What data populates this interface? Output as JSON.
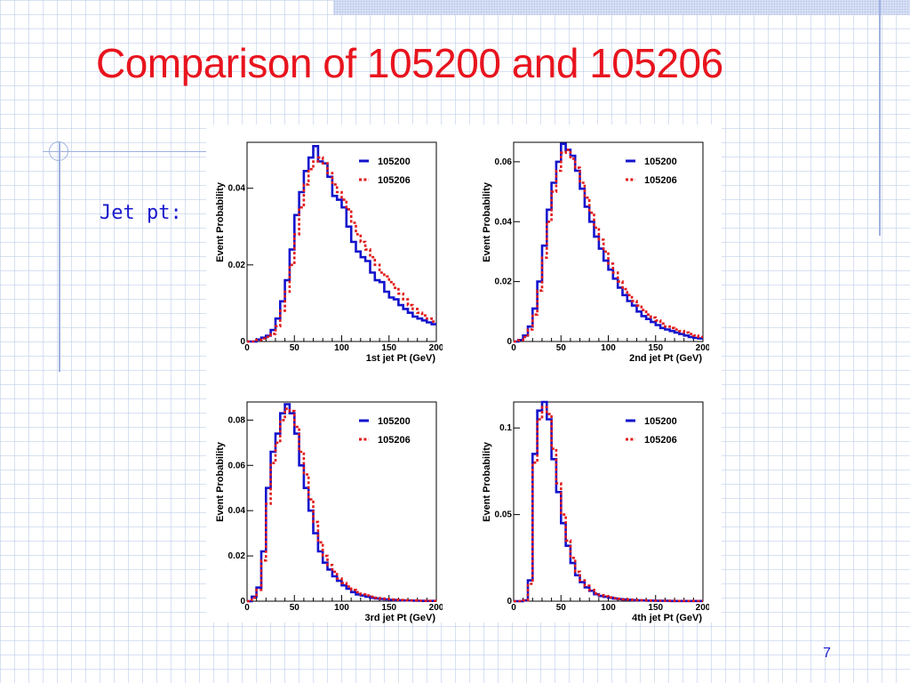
{
  "slide": {
    "title": "Comparison of 105200 and 105206",
    "bullet": "Jet pt:",
    "page_number": "7"
  },
  "colors": {
    "title": "#e8141e",
    "text": "#1a1acc",
    "series_105200": "#1212cc",
    "series_105206": "#e01a1a"
  },
  "chart_data": [
    {
      "type": "line",
      "xlabel": "1st jet Pt (GeV)",
      "ylabel": "Event Probability",
      "xlim": [
        0,
        200
      ],
      "ylim": [
        0,
        0.052
      ],
      "xticks": [
        0,
        50,
        100,
        150,
        200
      ],
      "yticks": [
        {
          "v": 0,
          "label": "0"
        },
        {
          "v": 0.02,
          "label": "0.02"
        },
        {
          "v": 0.04,
          "label": "0.04"
        }
      ],
      "bin_width": 5,
      "series": [
        {
          "name": "105200",
          "style": "solid",
          "values": [
            0,
            0,
            0.0005,
            0.001,
            0.0015,
            0.003,
            0.006,
            0.0105,
            0.016,
            0.024,
            0.033,
            0.039,
            0.0445,
            0.048,
            0.051,
            0.047,
            0.0465,
            0.043,
            0.038,
            0.037,
            0.035,
            0.03,
            0.026,
            0.0235,
            0.022,
            0.021,
            0.018,
            0.016,
            0.0155,
            0.013,
            0.0115,
            0.011,
            0.0095,
            0.0085,
            0.0075,
            0.0065,
            0.006,
            0.0055,
            0.005,
            0.0045
          ]
        },
        {
          "name": "105206",
          "style": "dashed",
          "values": [
            0,
            0,
            0.0004,
            0.0008,
            0.0012,
            0.002,
            0.004,
            0.008,
            0.013,
            0.02,
            0.028,
            0.035,
            0.041,
            0.045,
            0.047,
            0.048,
            0.0465,
            0.044,
            0.041,
            0.039,
            0.037,
            0.0345,
            0.031,
            0.028,
            0.026,
            0.024,
            0.022,
            0.02,
            0.018,
            0.017,
            0.0155,
            0.014,
            0.0125,
            0.011,
            0.0095,
            0.0085,
            0.0075,
            0.0068,
            0.006,
            0.0052
          ]
        }
      ]
    },
    {
      "type": "line",
      "xlabel": "2nd jet Pt (GeV)",
      "ylabel": "Event Probability",
      "xlim": [
        0,
        200
      ],
      "ylim": [
        0,
        0.0665
      ],
      "xticks": [
        0,
        50,
        100,
        150,
        200
      ],
      "yticks": [
        {
          "v": 0,
          "label": "0"
        },
        {
          "v": 0.02,
          "label": "0.02"
        },
        {
          "v": 0.04,
          "label": "0.04"
        },
        {
          "v": 0.06,
          "label": "0.06"
        }
      ],
      "bin_width": 5,
      "series": [
        {
          "name": "105200",
          "style": "solid",
          "values": [
            0,
            0.0005,
            0.002,
            0.005,
            0.011,
            0.02,
            0.032,
            0.044,
            0.053,
            0.06,
            0.066,
            0.064,
            0.062,
            0.057,
            0.051,
            0.045,
            0.04,
            0.035,
            0.031,
            0.027,
            0.024,
            0.021,
            0.018,
            0.0155,
            0.0135,
            0.012,
            0.01,
            0.0085,
            0.0075,
            0.0065,
            0.0055,
            0.0045,
            0.004,
            0.0035,
            0.003,
            0.0025,
            0.002,
            0.0015,
            0.0012,
            0.001
          ]
        },
        {
          "name": "105206",
          "style": "dashed",
          "values": [
            0,
            0.0004,
            0.0015,
            0.004,
            0.009,
            0.017,
            0.028,
            0.04,
            0.05,
            0.057,
            0.063,
            0.064,
            0.061,
            0.058,
            0.053,
            0.048,
            0.043,
            0.038,
            0.034,
            0.03,
            0.026,
            0.023,
            0.02,
            0.0175,
            0.0155,
            0.0135,
            0.012,
            0.0105,
            0.009,
            0.008,
            0.007,
            0.006,
            0.005,
            0.0045,
            0.004,
            0.0035,
            0.003,
            0.0025,
            0.002,
            0.0015
          ]
        }
      ]
    },
    {
      "type": "line",
      "xlabel": "3rd jet Pt (GeV)",
      "ylabel": "Event Probability",
      "xlim": [
        0,
        200
      ],
      "ylim": [
        0,
        0.088
      ],
      "xticks": [
        0,
        50,
        100,
        150,
        200
      ],
      "yticks": [
        {
          "v": 0,
          "label": "0"
        },
        {
          "v": 0.02,
          "label": "0.02"
        },
        {
          "v": 0.04,
          "label": "0.04"
        },
        {
          "v": 0.06,
          "label": "0.06"
        },
        {
          "v": 0.08,
          "label": "0.08"
        }
      ],
      "bin_width": 5,
      "series": [
        {
          "name": "105200",
          "style": "solid",
          "values": [
            0,
            0.002,
            0.006,
            0.022,
            0.05,
            0.066,
            0.074,
            0.083,
            0.087,
            0.083,
            0.074,
            0.06,
            0.05,
            0.04,
            0.03,
            0.022,
            0.017,
            0.014,
            0.011,
            0.009,
            0.007,
            0.0055,
            0.004,
            0.003,
            0.0025,
            0.002,
            0.0015,
            0.0012,
            0.001,
            0.0008,
            0.0006,
            0.0005,
            0.0004,
            0.0003,
            0.0003,
            0.0002,
            0.0002,
            0.0001,
            0.0001,
            0.0001
          ]
        },
        {
          "name": "105206",
          "style": "dashed",
          "values": [
            0,
            0.0015,
            0.005,
            0.018,
            0.043,
            0.061,
            0.07,
            0.08,
            0.085,
            0.084,
            0.077,
            0.066,
            0.056,
            0.045,
            0.035,
            0.026,
            0.02,
            0.016,
            0.013,
            0.01,
            0.008,
            0.0065,
            0.005,
            0.004,
            0.003,
            0.0025,
            0.002,
            0.0015,
            0.0012,
            0.001,
            0.0008,
            0.0006,
            0.0005,
            0.0004,
            0.0003,
            0.0003,
            0.0002,
            0.0002,
            0.0001,
            0.0001
          ]
        }
      ]
    },
    {
      "type": "line",
      "xlabel": "4th jet Pt (GeV)",
      "ylabel": "Event Probability",
      "xlim": [
        0,
        200
      ],
      "ylim": [
        0,
        0.115
      ],
      "xticks": [
        0,
        50,
        100,
        150,
        200
      ],
      "yticks": [
        {
          "v": 0,
          "label": "0"
        },
        {
          "v": 0.05,
          "label": "0.05"
        },
        {
          "v": 0.1,
          "label": "0.1"
        }
      ],
      "bin_width": 5,
      "series": [
        {
          "name": "105200",
          "style": "solid",
          "values": [
            0,
            0,
            0.0005,
            0.012,
            0.085,
            0.11,
            0.115,
            0.105,
            0.082,
            0.063,
            0.045,
            0.032,
            0.022,
            0.015,
            0.011,
            0.008,
            0.006,
            0.004,
            0.003,
            0.0025,
            0.002,
            0.0015,
            0.0012,
            0.001,
            0.0008,
            0.0006,
            0.0005,
            0.0004,
            0.0003,
            0.0003,
            0.0002,
            0.0002,
            0.0002,
            0.0001,
            0.0001,
            0.0001,
            0.0001,
            0.0001,
            0.0001,
            0.0001
          ]
        },
        {
          "name": "105206",
          "style": "dashed",
          "values": [
            0,
            0,
            0.0004,
            0.01,
            0.08,
            0.105,
            0.112,
            0.108,
            0.088,
            0.068,
            0.05,
            0.035,
            0.025,
            0.017,
            0.012,
            0.009,
            0.0065,
            0.0045,
            0.0035,
            0.0028,
            0.0022,
            0.0018,
            0.0014,
            0.0011,
            0.0009,
            0.0007,
            0.0006,
            0.0005,
            0.0004,
            0.0003,
            0.0003,
            0.0002,
            0.0002,
            0.0002,
            0.0001,
            0.0001,
            0.0001,
            0.0001,
            0.0001,
            0.0001
          ]
        }
      ]
    }
  ]
}
